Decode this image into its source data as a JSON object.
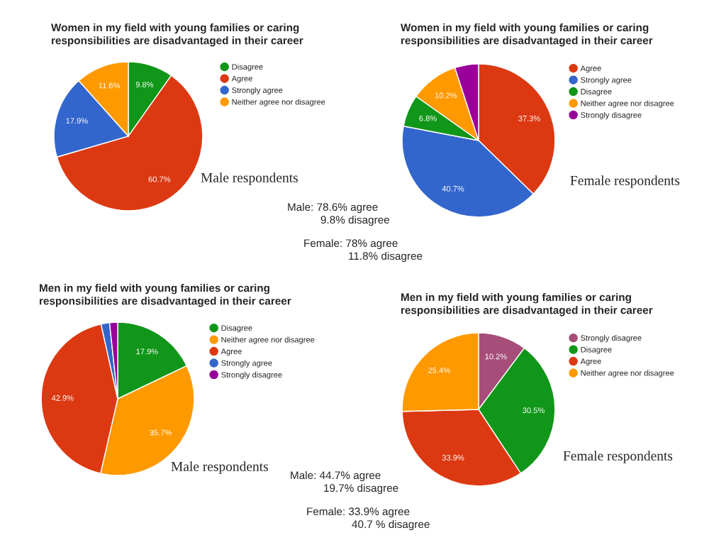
{
  "chart_data": [
    {
      "type": "pie",
      "title": "Women in my field with young families or caring\nresponsibilities are disadvantaged in their career",
      "categories": [
        "Disagree",
        "Agree",
        "Strongly agree",
        "Neither agree nor disagree"
      ],
      "values": [
        9.8,
        60.7,
        17.9,
        11.6
      ],
      "value_labels": [
        "9.8%",
        "60.7%",
        "17.9%",
        "11.6%"
      ],
      "colors": [
        "#109618",
        "#dc3912",
        "#3366cc",
        "#ff9900"
      ],
      "legend": "right",
      "annotations": [
        "Male respondents",
        "Male: 78.6% agree",
        "9.8% disagree"
      ]
    },
    {
      "type": "pie",
      "title": "Women in my field with young families or caring\nresponsibilities are disadvantaged in their career",
      "categories": [
        "Agree",
        "Strongly agree",
        "Disagree",
        "Neither agree nor disagree",
        "Strongly disagree"
      ],
      "values": [
        37.3,
        40.7,
        6.8,
        10.2,
        5.0
      ],
      "value_labels": [
        "37.3%",
        "40.7%",
        "6.8%",
        "10.2%",
        null
      ],
      "colors": [
        "#dc3912",
        "#3366cc",
        "#109618",
        "#ff9900",
        "#990099"
      ],
      "legend": "right",
      "annotations": [
        "Female respondents",
        "Female: 78% agree",
        "11.8% disagree"
      ]
    },
    {
      "type": "pie",
      "title": "Men in my field with young families or caring\nresponsibilities are disadvantaged in their career",
      "categories": [
        "Disagree",
        "Neither agree nor disagree",
        "Agree",
        "Strongly agree",
        "Strongly disagree"
      ],
      "values": [
        17.9,
        35.7,
        42.9,
        1.8,
        1.7
      ],
      "value_labels": [
        "17.9%",
        "35.7%",
        "42.9%",
        null,
        null
      ],
      "colors": [
        "#109618",
        "#ff9900",
        "#dc3912",
        "#3366cc",
        "#990099"
      ],
      "legend": "right",
      "annotations": [
        "Male respondents",
        "Male: 44.7% agree",
        "19.7% disagree"
      ]
    },
    {
      "type": "pie",
      "title": "Men in my field with young families or caring\nresponsibilities are disadvantaged in their career",
      "categories": [
        "Strongly disagree",
        "Disagree",
        "Agree",
        "Neither agree nor disagree"
      ],
      "values": [
        10.2,
        30.5,
        33.9,
        25.4
      ],
      "value_labels": [
        "10.2%",
        "30.5%",
        "33.9%",
        "25.4%"
      ],
      "colors": [
        "#a64d79",
        "#109618",
        "#dc3912",
        "#ff9900"
      ],
      "legend": "right",
      "annotations": [
        "Female respondents",
        "Female: 33.9% agree",
        "40.7 % disagree"
      ]
    }
  ]
}
